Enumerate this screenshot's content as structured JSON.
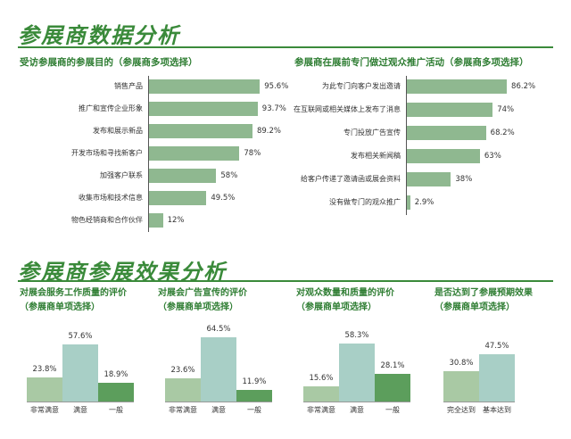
{
  "titles": {
    "main": "参展商数据分析",
    "section2": "参展商参展效果分析"
  },
  "chart_data": [
    {
      "type": "bar",
      "orientation": "horizontal",
      "title": "受访参展商的参展目的（参展商多项选择）",
      "categories": [
        "销售产品",
        "推广和宣传企业形象",
        "发布和展示新品",
        "开发市场和寻找新客户",
        "加强客户联系",
        "收集市场和技术信息",
        "物色经销商和合作伙伴"
      ],
      "values": [
        95.6,
        93.7,
        89.2,
        78,
        58,
        49.5,
        12
      ],
      "value_labels": [
        "95.6%",
        "93.7%",
        "89.2%",
        "78%",
        "58%",
        "49.5%",
        "12%"
      ],
      "xlim": [
        0,
        100
      ],
      "grid": false,
      "color": "#8fb890"
    },
    {
      "type": "bar",
      "orientation": "horizontal",
      "title": "参展商在展前专门做过观众推广活动（参展商多项选择）",
      "categories": [
        "为此专门向客户发出邀请",
        "在互联网或相关媒体上发布了消息",
        "专门投放广告宣传",
        "发布相关新闻稿",
        "给客户传递了邀请函或展会资料",
        "没有做专门的观众推广"
      ],
      "values": [
        86.2,
        74,
        68.2,
        63,
        38,
        2.9
      ],
      "value_labels": [
        "86.2%",
        "74%",
        "68.2%",
        "63%",
        "38%",
        "2.9%"
      ],
      "xlim": [
        0,
        100
      ],
      "grid": false,
      "color": "#8fb890"
    },
    {
      "type": "bar",
      "title_lines": [
        "对展会服务工作质量的评价",
        "（参展商单项选择）"
      ],
      "categories": [
        "非常满意",
        "满意",
        "一般"
      ],
      "values": [
        23.8,
        57.6,
        18.9
      ],
      "value_labels": [
        "23.8%",
        "57.6%",
        "18.9%"
      ],
      "colors": [
        "#a9c9a4",
        "#a8cfc6",
        "#5c9e5c"
      ],
      "ylim": [
        0,
        70
      ]
    },
    {
      "type": "bar",
      "title_lines": [
        "对展会广告宣传的评价",
        "（参展商单项选择）"
      ],
      "categories": [
        "非常满意",
        "满意",
        "一般"
      ],
      "values": [
        23.6,
        64.5,
        11.9
      ],
      "value_labels": [
        "23.6%",
        "64.5%",
        "11.9%"
      ],
      "colors": [
        "#a9c9a4",
        "#a8cfc6",
        "#5c9e5c"
      ],
      "ylim": [
        0,
        70
      ]
    },
    {
      "type": "bar",
      "title_lines": [
        "对观众数量和质量的评价",
        "（参展商单项选择）"
      ],
      "categories": [
        "非常满意",
        "满意",
        "一般"
      ],
      "values": [
        15.6,
        58.3,
        28.1
      ],
      "value_labels": [
        "15.6%",
        "58.3%",
        "28.1%"
      ],
      "colors": [
        "#a9c9a4",
        "#a8cfc6",
        "#5c9e5c"
      ],
      "ylim": [
        0,
        70
      ]
    },
    {
      "type": "bar",
      "title_lines": [
        "是否达到了参展预期效果",
        "（参展商单项选择）"
      ],
      "categories": [
        "完全达到",
        "基本达到"
      ],
      "values": [
        30.8,
        47.5
      ],
      "value_labels": [
        "30.8%",
        "47.5%"
      ],
      "colors": [
        "#a9c9a4",
        "#a8cfc6"
      ],
      "ylim": [
        0,
        70
      ]
    }
  ]
}
